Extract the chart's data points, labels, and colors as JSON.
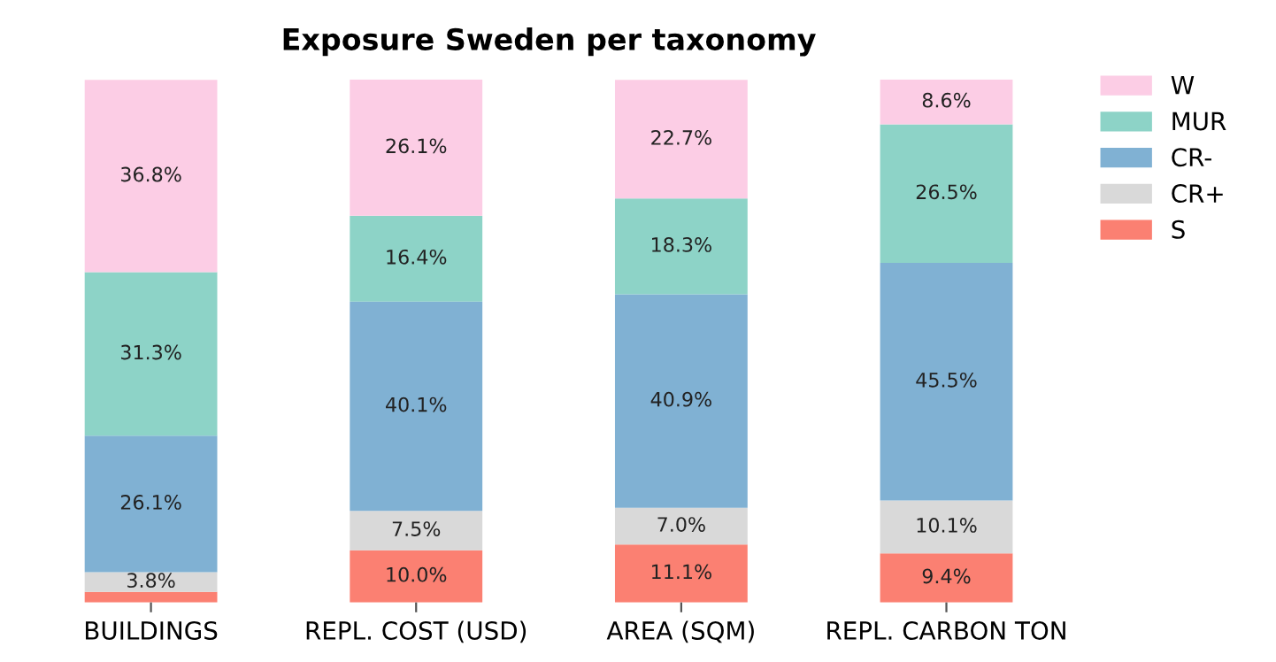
{
  "chart_data": {
    "type": "bar",
    "title": "Exposure Sweden per taxonomy",
    "stacked": true,
    "legend": "top right",
    "grid": false,
    "categories": [
      "BUILDINGS",
      "REPL. COST (USD)",
      "AREA (SQM)",
      "REPL. CARBON TON"
    ],
    "series": [
      {
        "name": "S",
        "color": "#fb8072",
        "values": [
          2.0,
          10.0,
          11.1,
          9.4
        ],
        "value_labels": [
          null,
          "10.0%",
          "11.1%",
          "9.4%"
        ]
      },
      {
        "name": "CR+",
        "color": "#d9d9d9",
        "values": [
          3.8,
          7.5,
          7.0,
          10.1
        ],
        "value_labels": [
          "3.8%",
          "7.5%",
          "7.0%",
          "10.1%"
        ]
      },
      {
        "name": "CR-",
        "color": "#80b1d3",
        "values": [
          26.1,
          40.1,
          40.9,
          45.5
        ],
        "value_labels": [
          "26.1%",
          "40.1%",
          "40.9%",
          "45.5%"
        ]
      },
      {
        "name": "MUR",
        "color": "#8dd3c7",
        "values": [
          31.3,
          16.4,
          18.3,
          26.5
        ],
        "value_labels": [
          "31.3%",
          "16.4%",
          "18.3%",
          "26.5%"
        ]
      },
      {
        "name": "W",
        "color": "#fccde5",
        "values": [
          36.8,
          26.1,
          22.7,
          8.6
        ],
        "value_labels": [
          "36.8%",
          "26.1%",
          "22.7%",
          "8.6%"
        ]
      }
    ]
  }
}
